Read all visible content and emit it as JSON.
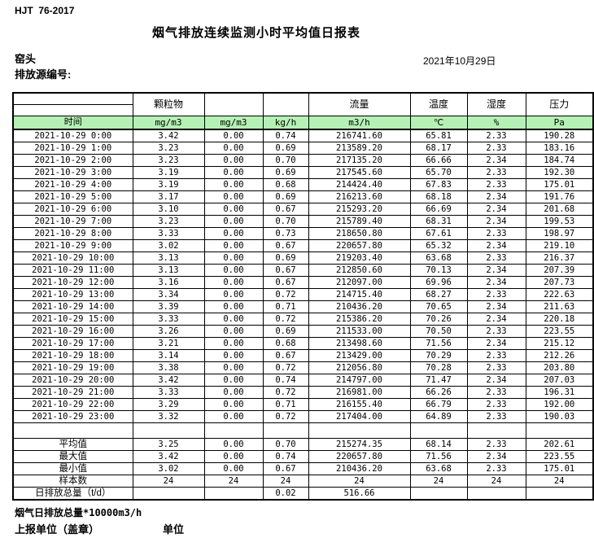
{
  "header": {
    "standard": "HJT  76-2017",
    "title": "烟气排放连续监测小时平均值日报表",
    "site": "窑头",
    "date": "2021年10月29日",
    "source_label": "排放源编号:"
  },
  "colors": {
    "header_green": "#b5f1b5",
    "border": "#000000"
  },
  "table": {
    "group_headers": [
      "",
      "颗粒物",
      "",
      "",
      "流量",
      "温度",
      "湿度",
      "压力"
    ],
    "unit_headers": [
      "时间",
      "mg/m3",
      "mg/m3",
      "kg/h",
      "m3/h",
      "℃",
      "%",
      "Pa"
    ],
    "rows": [
      [
        "2021-10-29 0:00",
        "3.42",
        "0.00",
        "0.74",
        "216741.60",
        "65.81",
        "2.33",
        "190.28"
      ],
      [
        "2021-10-29 1:00",
        "3.23",
        "0.00",
        "0.69",
        "213589.20",
        "68.17",
        "2.33",
        "183.16"
      ],
      [
        "2021-10-29 2:00",
        "3.23",
        "0.00",
        "0.70",
        "217135.20",
        "66.66",
        "2.34",
        "184.74"
      ],
      [
        "2021-10-29 3:00",
        "3.19",
        "0.00",
        "0.69",
        "217545.60",
        "65.70",
        "2.33",
        "192.30"
      ],
      [
        "2021-10-29 4:00",
        "3.19",
        "0.00",
        "0.68",
        "214424.40",
        "67.83",
        "2.33",
        "175.01"
      ],
      [
        "2021-10-29 5:00",
        "3.17",
        "0.00",
        "0.69",
        "216213.60",
        "68.18",
        "2.34",
        "191.76"
      ],
      [
        "2021-10-29 6:00",
        "3.10",
        "0.00",
        "0.67",
        "215293.20",
        "66.69",
        "2.34",
        "201.68"
      ],
      [
        "2021-10-29 7:00",
        "3.23",
        "0.00",
        "0.70",
        "215789.40",
        "68.31",
        "2.34",
        "199.53"
      ],
      [
        "2021-10-29 8:00",
        "3.33",
        "0.00",
        "0.73",
        "218650.80",
        "67.61",
        "2.33",
        "198.97"
      ],
      [
        "2021-10-29 9:00",
        "3.02",
        "0.00",
        "0.67",
        "220657.80",
        "65.32",
        "2.34",
        "219.10"
      ],
      [
        "2021-10-29 10:00",
        "3.13",
        "0.00",
        "0.69",
        "219203.40",
        "63.68",
        "2.33",
        "216.37"
      ],
      [
        "2021-10-29 11:00",
        "3.13",
        "0.00",
        "0.67",
        "212850.60",
        "70.13",
        "2.34",
        "207.39"
      ],
      [
        "2021-10-29 12:00",
        "3.16",
        "0.00",
        "0.67",
        "212097.00",
        "69.96",
        "2.34",
        "207.73"
      ],
      [
        "2021-10-29 13:00",
        "3.34",
        "0.00",
        "0.72",
        "214715.40",
        "68.27",
        "2.33",
        "222.63"
      ],
      [
        "2021-10-29 14:00",
        "3.39",
        "0.00",
        "0.71",
        "210436.20",
        "70.65",
        "2.34",
        "211.63"
      ],
      [
        "2021-10-29 15:00",
        "3.33",
        "0.00",
        "0.72",
        "215386.20",
        "70.26",
        "2.34",
        "220.18"
      ],
      [
        "2021-10-29 16:00",
        "3.26",
        "0.00",
        "0.69",
        "211533.00",
        "70.50",
        "2.33",
        "223.55"
      ],
      [
        "2021-10-29 17:00",
        "3.21",
        "0.00",
        "0.68",
        "213498.60",
        "71.56",
        "2.34",
        "215.12"
      ],
      [
        "2021-10-29 18:00",
        "3.14",
        "0.00",
        "0.67",
        "213429.00",
        "70.29",
        "2.33",
        "212.26"
      ],
      [
        "2021-10-29 19:00",
        "3.38",
        "0.00",
        "0.72",
        "212056.80",
        "70.28",
        "2.33",
        "203.80"
      ],
      [
        "2021-10-29 20:00",
        "3.42",
        "0.00",
        "0.74",
        "214797.00",
        "71.47",
        "2.34",
        "207.03"
      ],
      [
        "2021-10-29 21:00",
        "3.33",
        "0.00",
        "0.72",
        "216981.00",
        "66.26",
        "2.33",
        "196.31"
      ],
      [
        "2021-10-29 22:00",
        "3.29",
        "0.00",
        "0.71",
        "216155.40",
        "66.79",
        "2.33",
        "192.00"
      ],
      [
        "2021-10-29 23:00",
        "3.32",
        "0.00",
        "0.72",
        "217404.00",
        "64.89",
        "2.33",
        "190.03"
      ]
    ],
    "summary": [
      [
        "平均值",
        "3.25",
        "0.00",
        "0.70",
        "215274.35",
        "68.14",
        "2.33",
        "202.61"
      ],
      [
        "最大值",
        "3.42",
        "0.00",
        "0.74",
        "220657.80",
        "71.56",
        "2.34",
        "223.55"
      ],
      [
        "最小值",
        "3.02",
        "0.00",
        "0.67",
        "210436.20",
        "63.68",
        "2.33",
        "175.01"
      ],
      [
        "样本数",
        "24",
        "24",
        "24",
        "24",
        "24",
        "24",
        "24"
      ],
      [
        "日排放总量（t/d）",
        "",
        "",
        "0.02",
        "516.66",
        "",
        "",
        ""
      ]
    ]
  },
  "footer": {
    "note": "烟气日排放总量*10000m3/h",
    "report_unit": "上报单位（盖章）",
    "unit": "单位"
  }
}
